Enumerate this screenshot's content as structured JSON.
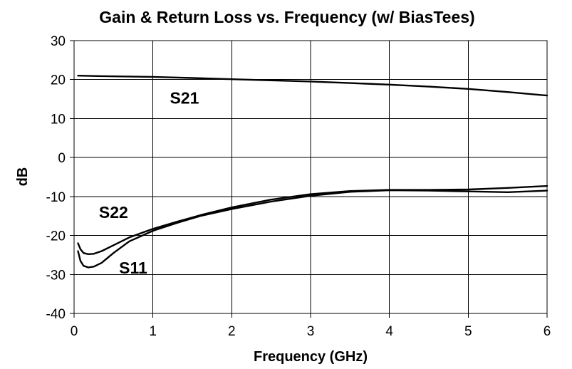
{
  "chart_data": {
    "type": "line",
    "title": "Gain & Return Loss vs. Frequency (w/ BiasTees)",
    "xlabel": "Frequency (GHz)",
    "ylabel": "dB",
    "xlim": [
      0,
      6
    ],
    "ylim": [
      -40,
      30
    ],
    "x_ticks": [
      0,
      1,
      2,
      3,
      4,
      5,
      6
    ],
    "y_ticks": [
      -40,
      -30,
      -20,
      -10,
      0,
      10,
      20,
      30
    ],
    "grid": true,
    "legend": "none",
    "line_color": "#000000",
    "series": [
      {
        "name": "S21",
        "x": [
          0.05,
          0.3,
          0.6,
          1.0,
          1.5,
          2.0,
          2.5,
          3.0,
          3.5,
          4.0,
          4.5,
          5.0,
          5.5,
          6.0
        ],
        "y": [
          21.0,
          20.9,
          20.8,
          20.7,
          20.4,
          20.1,
          19.8,
          19.5,
          19.1,
          18.7,
          18.2,
          17.6,
          16.8,
          15.9
        ]
      },
      {
        "name": "S22",
        "x": [
          0.05,
          0.08,
          0.12,
          0.18,
          0.25,
          0.35,
          0.5,
          0.7,
          1.0,
          1.3,
          1.6,
          2.0,
          2.5,
          3.0,
          3.5,
          4.0,
          4.5,
          5.0,
          5.5,
          6.0
        ],
        "y": [
          -22.0,
          -23.5,
          -24.5,
          -24.8,
          -24.7,
          -24.0,
          -22.5,
          -20.5,
          -18.3,
          -16.5,
          -14.8,
          -12.8,
          -10.8,
          -9.4,
          -8.6,
          -8.3,
          -8.3,
          -8.2,
          -7.8,
          -7.3
        ]
      },
      {
        "name": "S11",
        "x": [
          0.05,
          0.08,
          0.12,
          0.18,
          0.25,
          0.35,
          0.5,
          0.7,
          1.0,
          1.3,
          1.6,
          2.0,
          2.5,
          3.0,
          3.5,
          4.0,
          4.5,
          5.0,
          5.5,
          6.0
        ],
        "y": [
          -24.0,
          -26.5,
          -27.8,
          -28.2,
          -28.0,
          -27.0,
          -24.5,
          -21.5,
          -18.8,
          -16.8,
          -15.0,
          -13.2,
          -11.3,
          -9.8,
          -8.8,
          -8.4,
          -8.5,
          -8.7,
          -8.9,
          -8.5
        ]
      }
    ],
    "annotations": [
      {
        "text": "S21",
        "x": 1.4,
        "y": 13.8
      },
      {
        "text": "S22",
        "x": 0.5,
        "y": -15.5
      },
      {
        "text": "S11",
        "x": 0.75,
        "y": -29.8
      }
    ]
  }
}
